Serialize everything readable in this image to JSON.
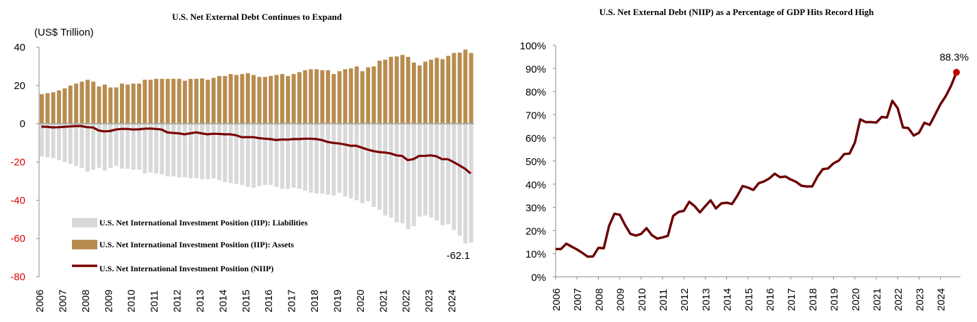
{
  "chart_data": [
    {
      "type": "bar",
      "title": "U.S. Net External Debt Continues to Expand",
      "ylabel": "(US$ Trillion)",
      "ylim": [
        -80,
        40
      ],
      "yticks": [
        40,
        20,
        0,
        -20,
        -40,
        -60,
        -80
      ],
      "x_tick_labels": [
        "2006",
        "2007",
        "2008",
        "2009",
        "2010",
        "2011",
        "2012",
        "2013",
        "2014",
        "2015",
        "2016",
        "2017",
        "2018",
        "2019",
        "2020",
        "2021",
        "2022",
        "2023",
        "2024"
      ],
      "frequency": "quarterly, 2006Q1-2024Q4",
      "legend_position": "bottom-left",
      "annotation": "-62.1",
      "colors": {
        "liabilities": "#d9d9d9",
        "assets": "#b88c4f",
        "niip": "#7a0000"
      },
      "series": [
        {
          "name": "U.S. Net International Investment Position (IIP): Liabilities",
          "kind": "bar",
          "values": [
            -17,
            -17.5,
            -18,
            -19,
            -20,
            -21,
            -22,
            -23,
            -25,
            -24,
            -23,
            -24.5,
            -23,
            -22,
            -23.5,
            -23.5,
            -24,
            -24,
            -26,
            -25.5,
            -26,
            -26.5,
            -27.5,
            -27.5,
            -28,
            -28,
            -28.5,
            -28.5,
            -29,
            -29,
            -28.5,
            -29.5,
            -30.5,
            -31,
            -31.5,
            -32,
            -33,
            -33.5,
            -32.5,
            -32,
            -32,
            -33,
            -34,
            -34,
            -33.5,
            -34,
            -35,
            -36,
            -36.5,
            -36.5,
            -37,
            -37.5,
            -36,
            -38,
            -39,
            -40,
            -41.5,
            -40.5,
            -43.5,
            -45,
            -48,
            -49,
            -51.5,
            -52,
            -55,
            -53.5,
            -48.5,
            -48,
            -49,
            -50.5,
            -53,
            -52.5,
            -55.5,
            -58.5,
            -62.5,
            -62.1
          ]
        },
        {
          "name": "U.S. Net International Investment Position (IIP): Assets",
          "kind": "bar",
          "values": [
            15.5,
            16,
            16.5,
            17.5,
            18.5,
            20,
            21,
            22,
            23,
            22,
            19.5,
            20.5,
            19,
            19,
            21,
            20.5,
            21,
            21,
            23,
            23,
            23.5,
            23.5,
            23.5,
            23.5,
            23.5,
            22.5,
            23.5,
            23.5,
            23.7,
            23,
            24,
            25,
            25,
            26,
            25.5,
            26,
            26.5,
            25.5,
            24.5,
            24.5,
            25,
            25.5,
            26,
            25,
            26,
            27,
            28,
            28.5,
            28.5,
            28,
            28,
            26,
            27.5,
            28.5,
            29,
            30,
            27.5,
            29.5,
            30,
            33,
            33.5,
            35,
            35.2,
            36,
            35,
            32,
            30.5,
            32.5,
            33.5,
            34.5,
            33.8,
            35.5,
            37,
            37.2,
            38.8,
            37
          ]
        },
        {
          "name": "U.S. Net International Investment Position (NIIP)",
          "kind": "line",
          "values": [
            -1.5,
            -1.6,
            -1.9,
            -1.8,
            -1.6,
            -1.4,
            -1.2,
            -1.2,
            -1.8,
            -1.9,
            -3.5,
            -4,
            -3.8,
            -3,
            -2.7,
            -2.7,
            -3,
            -2.9,
            -2.6,
            -2.5,
            -2.7,
            -3,
            -4.5,
            -4.8,
            -5,
            -5.5,
            -5,
            -4.5,
            -5,
            -5.5,
            -5.2,
            -5.3,
            -5.5,
            -5.5,
            -6,
            -7,
            -7,
            -7,
            -7.5,
            -7.8,
            -8,
            -8.5,
            -8.2,
            -8.3,
            -8,
            -8,
            -7.8,
            -7.8,
            -8,
            -8.5,
            -9.5,
            -10,
            -10.3,
            -10.8,
            -11.5,
            -11.5,
            -12.5,
            -13.5,
            -14.3,
            -14.8,
            -15,
            -15.5,
            -16.5,
            -16.8,
            -19,
            -18.5,
            -16.8,
            -16.8,
            -16.5,
            -17,
            -18.5,
            -18.5,
            -20,
            -21.7,
            -23.5,
            -26
          ]
        }
      ]
    },
    {
      "type": "line",
      "title": "U.S. Net External Debt (NIIP) as a Percentage of GDP Hits Record High",
      "ylim": [
        0,
        100
      ],
      "yticks": [
        "100%",
        "90%",
        "80%",
        "70%",
        "60%",
        "50%",
        "40%",
        "30%",
        "20%",
        "10%",
        "0%"
      ],
      "x_tick_labels": [
        "2006",
        "2007",
        "2008",
        "2009",
        "2010",
        "2011",
        "2012",
        "2013",
        "2014",
        "2015",
        "2016",
        "2017",
        "2018",
        "2019",
        "2020",
        "2021",
        "2022",
        "2023",
        "2024"
      ],
      "frequency": "quarterly, 2006Q1-2024Q4",
      "annotation": "88.3%",
      "colors": {
        "line": "#6b0000",
        "marker": "#c00000"
      },
      "series": [
        {
          "name": "NIIP % of GDP",
          "values": [
            12,
            12,
            14.3,
            13,
            11.8,
            10.3,
            8.7,
            8.8,
            12.5,
            12.3,
            22,
            27.2,
            26.8,
            22.3,
            18.5,
            17.8,
            18.5,
            21,
            18,
            16.5,
            17,
            17.7,
            26.3,
            28,
            28.5,
            32.4,
            30.5,
            27.8,
            30.5,
            33,
            29.5,
            31.7,
            32,
            31.4,
            35,
            39.2,
            38.5,
            37.5,
            40.4,
            41.2,
            42.5,
            44.5,
            43,
            43.3,
            42,
            41,
            39.3,
            39,
            39,
            43.3,
            46.5,
            46.8,
            49,
            50.2,
            53,
            53.2,
            58,
            68,
            66.8,
            66.8,
            66.6,
            69,
            68.8,
            76,
            72.8,
            64.5,
            64.2,
            61,
            62.2,
            66.5,
            65.6,
            70,
            74.5,
            78,
            82.5,
            88.3
          ]
        }
      ]
    }
  ]
}
